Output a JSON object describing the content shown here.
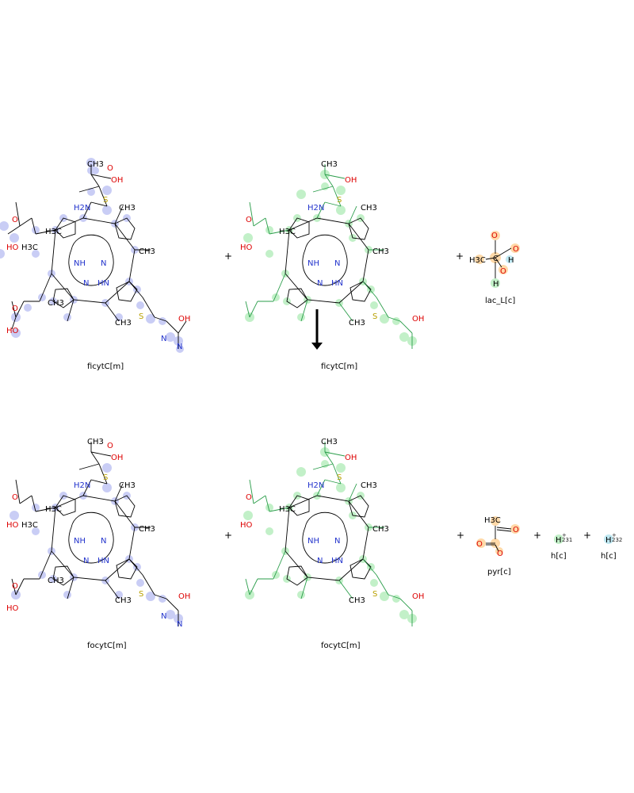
{
  "reaction": {
    "top": {
      "left_1": "ficytC[m]",
      "left_2": "ficytC[m]",
      "left_3": "lac_L[c]",
      "plus_signs": [
        "+",
        "+"
      ]
    },
    "bottom": {
      "right_1": "focytC[m]",
      "right_2": "focytC[m]",
      "right_3": "pyr[c]",
      "right_4": "h[c]",
      "right_5": "h[c]",
      "plus_signs": [
        "+",
        "+",
        "+",
        "+"
      ]
    }
  },
  "colors": {
    "blue_highlight": "#c9cdf5",
    "green_highlight": "#c2f0c8",
    "orange_highlight": "#ffd9a8",
    "cyan_highlight": "#bfe8f2",
    "nitrogen": "#2233cc",
    "oxygen": "#dd0000",
    "sulfur": "#b8a000",
    "bond": "#000000",
    "green_bond": "#2a9d4a"
  },
  "molecule_blue": {
    "atoms": [
      "H3C",
      "H3C",
      "CH3",
      "CH3",
      "CH3",
      "CH3",
      "CH3",
      "NH",
      "N",
      "N",
      "HN",
      "H2N",
      "OH",
      "OH",
      "HO",
      "HO",
      "O",
      "O",
      "O",
      "S",
      "S",
      "N",
      "N"
    ],
    "indices": [
      "24",
      "23",
      "18",
      "8",
      "58",
      "26",
      "46",
      "36",
      "53",
      "48",
      "25",
      "31",
      "20",
      "21",
      "28",
      "15",
      "11",
      "29",
      "30",
      "10",
      "4",
      "14",
      "19",
      "17",
      "54",
      "12",
      "13",
      "56",
      "47",
      "40",
      "2",
      "57",
      "34",
      "39",
      "42",
      "43",
      "45",
      "49",
      "51",
      "16",
      "22",
      "33",
      "35"
    ]
  },
  "molecule_green": {
    "atoms": [
      "CH3",
      "H3C",
      "CH3",
      "CH3",
      "CH3",
      "NH",
      "N",
      "N",
      "HN",
      "H2N",
      "OH",
      "OH",
      "HO",
      "O",
      "S",
      "S"
    ],
    "indices": [
      "82",
      "81",
      "76",
      "66",
      "64",
      "59",
      "116",
      "84",
      "104",
      "102",
      "94",
      "83",
      "108",
      "111",
      "106",
      "96",
      "93",
      "110",
      "86",
      "79",
      "73",
      "88",
      "74",
      "112",
      "62",
      "69",
      "67",
      "68",
      "65",
      "114",
      "115",
      "70",
      "71",
      "72",
      "92",
      "98",
      "97",
      "105",
      "100",
      "103",
      "101",
      "107",
      "109",
      "60",
      "63",
      "77",
      "78",
      "80",
      "89",
      "90"
    ]
  },
  "small_molecules": {
    "lac": {
      "atoms": [
        "O",
        "O",
        "O",
        "H3C",
        "H",
        "H",
        "C"
      ],
      "indices": [
        "117",
        "119",
        "121",
        "122",
        "118",
        "232",
        "231"
      ]
    },
    "pyr": {
      "atoms": [
        "H3C",
        "O",
        "O",
        "O"
      ],
      "indices": [
        "119",
        "120",
        "118",
        "122",
        "121",
        "117"
      ]
    },
    "h1": {
      "atom": "H",
      "charge": "+",
      "index": "231"
    },
    "h2": {
      "atom": "H",
      "charge": "+",
      "index": "232"
    }
  }
}
